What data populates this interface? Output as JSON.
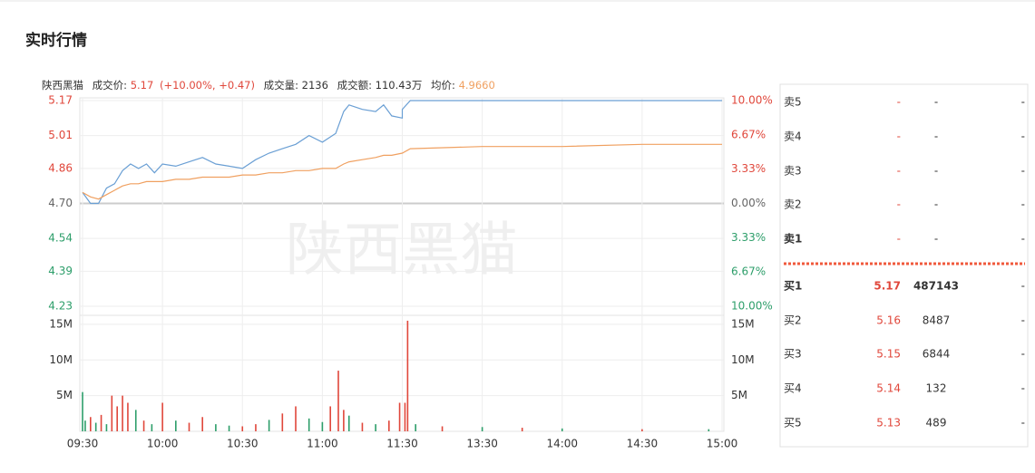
{
  "header": {
    "title": "实时行情"
  },
  "quote": {
    "name": "陕西黑猫",
    "price_label": "成交价:",
    "price": "5.17",
    "change": "(+10.00%, +0.47)",
    "volume_label": "成交量:",
    "volume": "2136",
    "amount_label": "成交额:",
    "amount": "110.43万",
    "avg_label": "均价:",
    "avg": "4.9660"
  },
  "watermark": "陕西黑猫",
  "chart_data": [
    {
      "type": "line",
      "x": [
        "09:30",
        "09:33",
        "09:36",
        "09:39",
        "09:42",
        "09:45",
        "09:48",
        "09:51",
        "09:54",
        "09:57",
        "10:00",
        "10:05",
        "10:10",
        "10:15",
        "10:20",
        "10:25",
        "10:30",
        "10:35",
        "10:40",
        "10:45",
        "10:50",
        "10:55",
        "11:00",
        "11:05",
        "11:08",
        "11:10",
        "11:15",
        "11:20",
        "11:23",
        "11:26",
        "11:30",
        "13:00",
        "13:03",
        "13:30",
        "14:00",
        "14:30",
        "15:00"
      ],
      "series": [
        {
          "color": "#6a9fd4",
          "values": [
            4.75,
            4.7,
            4.7,
            4.77,
            4.79,
            4.85,
            4.88,
            4.86,
            4.88,
            4.84,
            4.88,
            4.87,
            4.89,
            4.91,
            4.88,
            4.87,
            4.86,
            4.9,
            4.93,
            4.95,
            4.97,
            5.01,
            4.98,
            5.02,
            5.12,
            5.15,
            5.13,
            5.12,
            5.15,
            5.1,
            5.09,
            5.13,
            5.17,
            5.17,
            5.17,
            5.17,
            5.17
          ]
        },
        {
          "color": "#f0a060",
          "values": [
            4.75,
            4.73,
            4.72,
            4.74,
            4.76,
            4.78,
            4.79,
            4.79,
            4.8,
            4.8,
            4.8,
            4.81,
            4.81,
            4.82,
            4.82,
            4.82,
            4.83,
            4.83,
            4.84,
            4.84,
            4.85,
            4.85,
            4.86,
            4.86,
            4.88,
            4.89,
            4.9,
            4.91,
            4.92,
            4.92,
            4.93,
            4.93,
            4.95,
            4.96,
            4.96,
            4.97,
            4.97
          ]
        }
      ],
      "ylim": [
        4.23,
        5.17
      ],
      "yticks": [
        5.17,
        5.01,
        4.86,
        {
          "value": 4.7,
          "label": "4.70"
        },
        4.54,
        4.39,
        4.23
      ],
      "y2lim": [
        -10,
        10
      ],
      "y2ticks": [
        {
          "value": 10,
          "label": "10.00%"
        },
        {
          "value": 6.67,
          "label": "6.67%"
        },
        {
          "value": 3.33,
          "label": "3.33%"
        },
        {
          "value": 0,
          "label": "0.00%"
        },
        {
          "value": -3.33,
          "label": "3.33%"
        },
        {
          "value": -6.67,
          "label": "6.67%"
        },
        {
          "value": -10,
          "label": "10.00%"
        }
      ],
      "up_color": "#e0473b",
      "down_color": "#2d9e6a",
      "flat_color": "#666666",
      "grid": true
    },
    {
      "type": "bar",
      "x": [
        "09:30",
        "09:31",
        "09:33",
        "09:35",
        "09:37",
        "09:39",
        "09:41",
        "09:43",
        "09:45",
        "09:47",
        "09:50",
        "09:53",
        "09:56",
        "10:00",
        "10:05",
        "10:10",
        "10:15",
        "10:20",
        "10:25",
        "10:30",
        "10:35",
        "10:40",
        "10:45",
        "10:50",
        "10:55",
        "11:00",
        "11:03",
        "11:06",
        "11:08",
        "11:10",
        "11:15",
        "11:20",
        "11:25",
        "11:29",
        "13:01",
        "13:02",
        "13:05",
        "13:15",
        "13:30",
        "13:45",
        "14:00",
        "14:30",
        "14:55"
      ],
      "values": [
        5500000,
        1500000,
        2000000,
        1200000,
        2300000,
        1000000,
        5000000,
        3500000,
        5000000,
        4000000,
        3000000,
        1500000,
        1000000,
        4000000,
        1500000,
        1200000,
        2000000,
        1000000,
        800000,
        700000,
        1000000,
        1600000,
        2500000,
        3500000,
        1800000,
        1300000,
        3500000,
        8500000,
        3000000,
        2200000,
        1200000,
        1000000,
        1500000,
        4000000,
        4000000,
        15500000,
        1000000,
        700000,
        600000,
        500000,
        400000,
        300000,
        300000
      ],
      "colors": [
        "#2d9e6a",
        "#2d9e6a",
        "#e0473b",
        "#2d9e6a",
        "#e0473b",
        "#2d9e6a",
        "#e0473b",
        "#e0473b",
        "#e0473b",
        "#e0473b",
        "#2d9e6a",
        "#e0473b",
        "#2d9e6a",
        "#e0473b",
        "#2d9e6a",
        "#e0473b",
        "#e0473b",
        "#2d9e6a",
        "#2d9e6a",
        "#e0473b",
        "#e0473b",
        "#2d9e6a",
        "#e0473b",
        "#e0473b",
        "#2d9e6a",
        "#2d9e6a",
        "#e0473b",
        "#e0473b",
        "#e0473b",
        "#2d9e6a",
        "#e0473b",
        "#2d9e6a",
        "#e0473b",
        "#e0473b",
        "#e0473b",
        "#e0473b",
        "#2d9e6a",
        "#e0473b",
        "#2d9e6a",
        "#e0473b",
        "#2d9e6a",
        "#e0473b",
        "#2d9e6a"
      ],
      "ylim": [
        0,
        16000000
      ],
      "yticks": [
        {
          "value": 15000000,
          "label": "15M"
        },
        {
          "value": 10000000,
          "label": "10M"
        },
        {
          "value": 5000000,
          "label": "5M"
        }
      ],
      "xticks": [
        "09:30",
        "10:00",
        "10:30",
        "11:00",
        "11:30",
        "13:30",
        "14:00",
        "14:30",
        "15:00"
      ],
      "grid": true
    }
  ],
  "order_book": {
    "sell": [
      {
        "label": "卖5",
        "price": "-",
        "volume": "-",
        "change": "-"
      },
      {
        "label": "卖4",
        "price": "-",
        "volume": "-",
        "change": "-"
      },
      {
        "label": "卖3",
        "price": "-",
        "volume": "-",
        "change": "-"
      },
      {
        "label": "卖2",
        "price": "-",
        "volume": "-",
        "change": "-"
      },
      {
        "label": "卖1",
        "price": "-",
        "volume": "-",
        "change": "-"
      }
    ],
    "buy": [
      {
        "label": "买1",
        "price": "5.17",
        "volume": "487143",
        "change": "-"
      },
      {
        "label": "买2",
        "price": "5.16",
        "volume": "8487",
        "change": "-"
      },
      {
        "label": "买3",
        "price": "5.15",
        "volume": "6844",
        "change": "-"
      },
      {
        "label": "买4",
        "price": "5.14",
        "volume": "132",
        "change": "-"
      },
      {
        "label": "买5",
        "price": "5.13",
        "volume": "489",
        "change": "-"
      }
    ]
  }
}
